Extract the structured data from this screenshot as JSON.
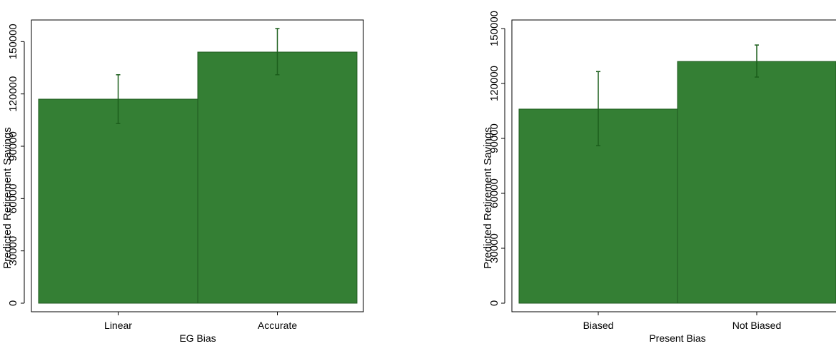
{
  "colors": {
    "bar_fill": "#347f34",
    "bar_stroke": "#1f5a1f",
    "error_bar": "#1b5e1b",
    "axis": "#000000",
    "frame": "#000000"
  },
  "chart_data": [
    {
      "type": "bar",
      "xlabel": "EG Bias",
      "ylabel": "Predicted Retirement Savings",
      "categories": [
        "Linear",
        "Accurate"
      ],
      "values": [
        117000,
        144000
      ],
      "error_low": [
        103000,
        131000
      ],
      "error_high": [
        131000,
        157500
      ],
      "ylim": [
        0,
        157500
      ],
      "yticks": [
        0,
        30000,
        60000,
        90000,
        120000,
        150000
      ],
      "ytick_labels": [
        "0",
        "30000",
        "60000",
        "90000",
        "120000",
        "150000"
      ],
      "grid": false,
      "legend": "none"
    },
    {
      "type": "bar",
      "xlabel": "Present Bias",
      "ylabel": "Predicted Retirement Savings",
      "categories": [
        "Biased",
        "Not Biased"
      ],
      "values": [
        106000,
        132000
      ],
      "error_low": [
        86000,
        123500
      ],
      "error_high": [
        126500,
        141000
      ],
      "ylim": [
        0,
        150000
      ],
      "yticks": [
        0,
        30000,
        60000,
        90000,
        120000,
        150000
      ],
      "ytick_labels": [
        "0",
        "30000",
        "60000",
        "90000",
        "120000",
        "150000"
      ],
      "grid": false,
      "legend": "none"
    }
  ]
}
